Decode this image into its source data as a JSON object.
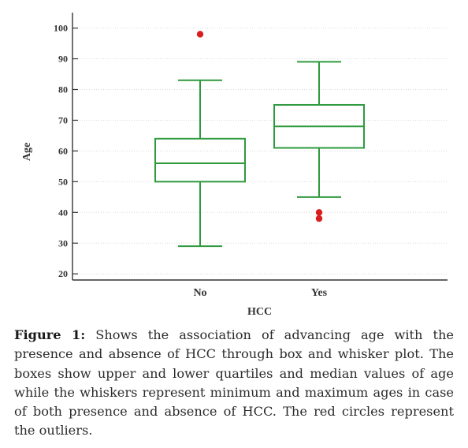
{
  "chart_data": {
    "type": "box",
    "title": "",
    "xlabel": "HCC",
    "ylabel": "Age",
    "ylim": [
      18,
      104
    ],
    "yticks": [
      20,
      30,
      40,
      50,
      60,
      70,
      80,
      90,
      100
    ],
    "grid": true,
    "categories": [
      "No",
      "Yes"
    ],
    "boxes": [
      {
        "category": "No",
        "min": 29,
        "q1": 50,
        "median": 56,
        "q3": 64,
        "max": 83,
        "outliers": [
          98
        ]
      },
      {
        "category": "Yes",
        "min": 45,
        "q1": 61,
        "median": 68,
        "q3": 75,
        "max": 89,
        "outliers": [
          38,
          40
        ]
      }
    ],
    "colors": {
      "box": "#2e9a3e",
      "outlier": "#d81e1e",
      "axis": "#333333",
      "grid": "#d9d9d9"
    }
  },
  "caption": {
    "label": "Figure 1:",
    "text": "Shows the association of advancing age with the presence and absence of HCC through box and whisker plot. The boxes show upper and lower quartiles and median values of age while the whiskers represent minimum and maximum ages in case of both presence and absence of HCC. The red circles represent the outliers."
  }
}
